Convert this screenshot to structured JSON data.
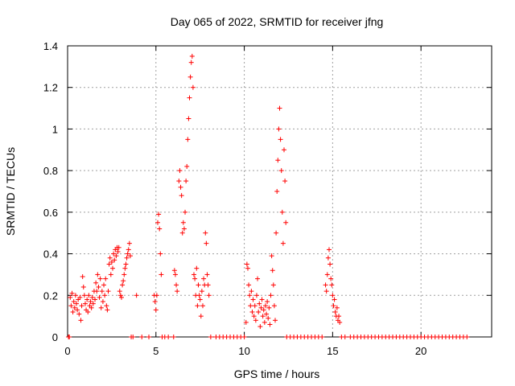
{
  "chart_data": {
    "type": "scatter",
    "title": "Day 065 of 2022, SRMTID for receiver jfng",
    "xlabel": "GPS time / hours",
    "ylabel": "SRMTID / TECUs",
    "xlim": [
      0,
      24
    ],
    "ylim": [
      0,
      1.4
    ],
    "xticks": [
      0,
      5,
      10,
      15,
      20
    ],
    "yticks": [
      0,
      0.2,
      0.4,
      0.6,
      0.8,
      1,
      1.2,
      1.4
    ],
    "xtick_labels": [
      "0",
      "5",
      "10",
      "15",
      "20"
    ],
    "ytick_labels": [
      "0",
      "0.2",
      "0.4",
      "0.6",
      "0.8",
      "1",
      "1.2",
      "1.4"
    ],
    "grid": true,
    "marker": "+",
    "series": [
      {
        "name": "SRMTID",
        "color": "#ff0000",
        "points": [
          [
            0.05,
            0.0
          ],
          [
            0.1,
            0.0
          ],
          [
            0.15,
            0.19
          ],
          [
            0.2,
            0.15
          ],
          [
            0.25,
            0.21
          ],
          [
            0.3,
            0.12
          ],
          [
            0.35,
            0.17
          ],
          [
            0.4,
            0.14
          ],
          [
            0.45,
            0.2
          ],
          [
            0.5,
            0.16
          ],
          [
            0.55,
            0.13
          ],
          [
            0.6,
            0.18
          ],
          [
            0.65,
            0.11
          ],
          [
            0.7,
            0.19
          ],
          [
            0.75,
            0.08
          ],
          [
            0.8,
            0.15
          ],
          [
            0.85,
            0.29
          ],
          [
            0.9,
            0.24
          ],
          [
            0.95,
            0.2
          ],
          [
            1.0,
            0.16
          ],
          [
            1.05,
            0.13
          ],
          [
            1.1,
            0.18
          ],
          [
            1.15,
            0.12
          ],
          [
            1.2,
            0.2
          ],
          [
            1.25,
            0.15
          ],
          [
            1.3,
            0.17
          ],
          [
            1.35,
            0.14
          ],
          [
            1.4,
            0.19
          ],
          [
            1.45,
            0.16
          ],
          [
            1.5,
            0.22
          ],
          [
            1.55,
            0.18
          ],
          [
            1.6,
            0.26
          ],
          [
            1.65,
            0.22
          ],
          [
            1.7,
            0.3
          ],
          [
            1.75,
            0.24
          ],
          [
            1.8,
            0.19
          ],
          [
            1.85,
            0.28
          ],
          [
            1.9,
            0.14
          ],
          [
            1.95,
            0.22
          ],
          [
            2.0,
            0.17
          ],
          [
            2.05,
            0.25
          ],
          [
            2.1,
            0.2
          ],
          [
            2.15,
            0.28
          ],
          [
            2.2,
            0.15
          ],
          [
            2.25,
            0.13
          ],
          [
            2.3,
            0.22
          ],
          [
            2.35,
            0.35
          ],
          [
            2.4,
            0.38
          ],
          [
            2.45,
            0.3
          ],
          [
            2.5,
            0.36
          ],
          [
            2.55,
            0.33
          ],
          [
            2.6,
            0.4
          ],
          [
            2.65,
            0.37
          ],
          [
            2.7,
            0.42
          ],
          [
            2.75,
            0.39
          ],
          [
            2.8,
            0.43
          ],
          [
            2.85,
            0.41
          ],
          [
            2.9,
            0.43
          ],
          [
            2.95,
            0.22
          ],
          [
            3.0,
            0.2
          ],
          [
            3.05,
            0.19
          ],
          [
            3.1,
            0.25
          ],
          [
            3.15,
            0.27
          ],
          [
            3.2,
            0.3
          ],
          [
            3.25,
            0.33
          ],
          [
            3.3,
            0.35
          ],
          [
            3.35,
            0.38
          ],
          [
            3.4,
            0.4
          ],
          [
            3.45,
            0.42
          ],
          [
            3.5,
            0.45
          ],
          [
            3.55,
            0.39
          ],
          [
            3.6,
            0.0
          ],
          [
            3.7,
            0.0
          ],
          [
            3.9,
            0.2
          ],
          [
            4.2,
            0.0
          ],
          [
            4.6,
            0.0
          ],
          [
            4.9,
            0.2
          ],
          [
            4.95,
            0.17
          ],
          [
            5.0,
            0.13
          ],
          [
            5.05,
            0.2
          ],
          [
            5.1,
            0.55
          ],
          [
            5.15,
            0.59
          ],
          [
            5.2,
            0.52
          ],
          [
            5.25,
            0.4
          ],
          [
            5.3,
            0.3
          ],
          [
            5.35,
            0.0
          ],
          [
            5.5,
            0.0
          ],
          [
            5.7,
            0.0
          ],
          [
            6.0,
            0.0
          ],
          [
            6.05,
            0.32
          ],
          [
            6.1,
            0.3
          ],
          [
            6.15,
            0.25
          ],
          [
            6.2,
            0.22
          ],
          [
            6.3,
            0.75
          ],
          [
            6.35,
            0.8
          ],
          [
            6.4,
            0.72
          ],
          [
            6.45,
            0.68
          ],
          [
            6.5,
            0.5
          ],
          [
            6.55,
            0.55
          ],
          [
            6.6,
            0.52
          ],
          [
            6.65,
            0.6
          ],
          [
            6.7,
            0.75
          ],
          [
            6.75,
            0.82
          ],
          [
            6.8,
            0.95
          ],
          [
            6.85,
            1.05
          ],
          [
            6.9,
            1.15
          ],
          [
            6.95,
            1.25
          ],
          [
            7.0,
            1.32
          ],
          [
            7.05,
            1.35
          ],
          [
            7.1,
            1.2
          ],
          [
            7.15,
            0.3
          ],
          [
            7.2,
            0.28
          ],
          [
            7.25,
            0.2
          ],
          [
            7.3,
            0.33
          ],
          [
            7.35,
            0.15
          ],
          [
            7.4,
            0.25
          ],
          [
            7.45,
            0.2
          ],
          [
            7.5,
            0.18
          ],
          [
            7.55,
            0.1
          ],
          [
            7.6,
            0.22
          ],
          [
            7.65,
            0.15
          ],
          [
            7.7,
            0.28
          ],
          [
            7.75,
            0.25
          ],
          [
            7.8,
            0.5
          ],
          [
            7.85,
            0.45
          ],
          [
            7.9,
            0.3
          ],
          [
            7.95,
            0.25
          ],
          [
            8.0,
            0.2
          ],
          [
            8.1,
            0.0
          ],
          [
            8.4,
            0.0
          ],
          [
            8.6,
            0.0
          ],
          [
            8.8,
            0.0
          ],
          [
            9.0,
            0.0
          ],
          [
            9.2,
            0.0
          ],
          [
            9.4,
            0.0
          ],
          [
            9.6,
            0.0
          ],
          [
            9.8,
            0.0
          ],
          [
            10.0,
            0.0
          ],
          [
            10.1,
            0.07
          ],
          [
            10.15,
            0.35
          ],
          [
            10.2,
            0.33
          ],
          [
            10.25,
            0.25
          ],
          [
            10.3,
            0.2
          ],
          [
            10.35,
            0.15
          ],
          [
            10.4,
            0.22
          ],
          [
            10.45,
            0.12
          ],
          [
            10.5,
            0.18
          ],
          [
            10.55,
            0.1
          ],
          [
            10.6,
            0.15
          ],
          [
            10.65,
            0.08
          ],
          [
            10.7,
            0.2
          ],
          [
            10.75,
            0.28
          ],
          [
            10.8,
            0.12
          ],
          [
            10.85,
            0.16
          ],
          [
            10.9,
            0.05
          ],
          [
            10.95,
            0.14
          ],
          [
            11.0,
            0.18
          ],
          [
            11.05,
            0.1
          ],
          [
            11.1,
            0.13
          ],
          [
            11.15,
            0.07
          ],
          [
            11.2,
            0.15
          ],
          [
            11.25,
            0.11
          ],
          [
            11.3,
            0.17
          ],
          [
            11.35,
            0.09
          ],
          [
            11.4,
            0.14
          ],
          [
            11.45,
            0.06
          ],
          [
            11.5,
            0.2
          ],
          [
            11.55,
            0.39
          ],
          [
            11.6,
            0.32
          ],
          [
            11.65,
            0.25
          ],
          [
            11.7,
            0.15
          ],
          [
            11.75,
            0.08
          ],
          [
            11.8,
            0.5
          ],
          [
            11.85,
            0.7
          ],
          [
            11.9,
            0.85
          ],
          [
            11.95,
            1.0
          ],
          [
            12.0,
            1.1
          ],
          [
            12.05,
            0.95
          ],
          [
            12.1,
            0.8
          ],
          [
            12.15,
            0.6
          ],
          [
            12.2,
            0.45
          ],
          [
            12.25,
            0.9
          ],
          [
            12.3,
            0.75
          ],
          [
            12.35,
            0.55
          ],
          [
            12.4,
            0.0
          ],
          [
            12.6,
            0.0
          ],
          [
            12.8,
            0.0
          ],
          [
            13.0,
            0.0
          ],
          [
            13.2,
            0.0
          ],
          [
            13.4,
            0.0
          ],
          [
            13.6,
            0.0
          ],
          [
            13.8,
            0.0
          ],
          [
            14.0,
            0.0
          ],
          [
            14.2,
            0.0
          ],
          [
            14.4,
            0.0
          ],
          [
            14.6,
            0.25
          ],
          [
            14.65,
            0.22
          ],
          [
            14.7,
            0.3
          ],
          [
            14.75,
            0.38
          ],
          [
            14.8,
            0.42
          ],
          [
            14.85,
            0.35
          ],
          [
            14.9,
            0.28
          ],
          [
            14.95,
            0.25
          ],
          [
            15.0,
            0.2
          ],
          [
            15.05,
            0.15
          ],
          [
            15.1,
            0.18
          ],
          [
            15.15,
            0.12
          ],
          [
            15.2,
            0.1
          ],
          [
            15.25,
            0.14
          ],
          [
            15.3,
            0.08
          ],
          [
            15.35,
            0.1
          ],
          [
            15.4,
            0.07
          ],
          [
            15.5,
            0.0
          ],
          [
            15.7,
            0.0
          ],
          [
            16.0,
            0.0
          ],
          [
            16.2,
            0.0
          ],
          [
            16.4,
            0.0
          ],
          [
            16.6,
            0.0
          ],
          [
            16.8,
            0.0
          ],
          [
            17.0,
            0.0
          ],
          [
            17.2,
            0.0
          ],
          [
            17.4,
            0.0
          ],
          [
            17.6,
            0.0
          ],
          [
            17.8,
            0.0
          ],
          [
            18.0,
            0.0
          ],
          [
            18.2,
            0.0
          ],
          [
            18.4,
            0.0
          ],
          [
            18.6,
            0.0
          ],
          [
            18.8,
            0.0
          ],
          [
            19.0,
            0.0
          ],
          [
            19.2,
            0.0
          ],
          [
            19.4,
            0.0
          ],
          [
            19.6,
            0.0
          ],
          [
            19.8,
            0.0
          ],
          [
            20.0,
            0.0
          ],
          [
            20.2,
            0.0
          ],
          [
            20.4,
            0.0
          ],
          [
            20.6,
            0.0
          ],
          [
            20.8,
            0.0
          ],
          [
            21.0,
            0.0
          ],
          [
            21.2,
            0.0
          ],
          [
            21.4,
            0.0
          ],
          [
            21.6,
            0.0
          ],
          [
            21.8,
            0.0
          ],
          [
            22.0,
            0.0
          ],
          [
            22.2,
            0.0
          ],
          [
            22.4,
            0.0
          ],
          [
            22.6,
            0.0
          ]
        ]
      }
    ]
  }
}
